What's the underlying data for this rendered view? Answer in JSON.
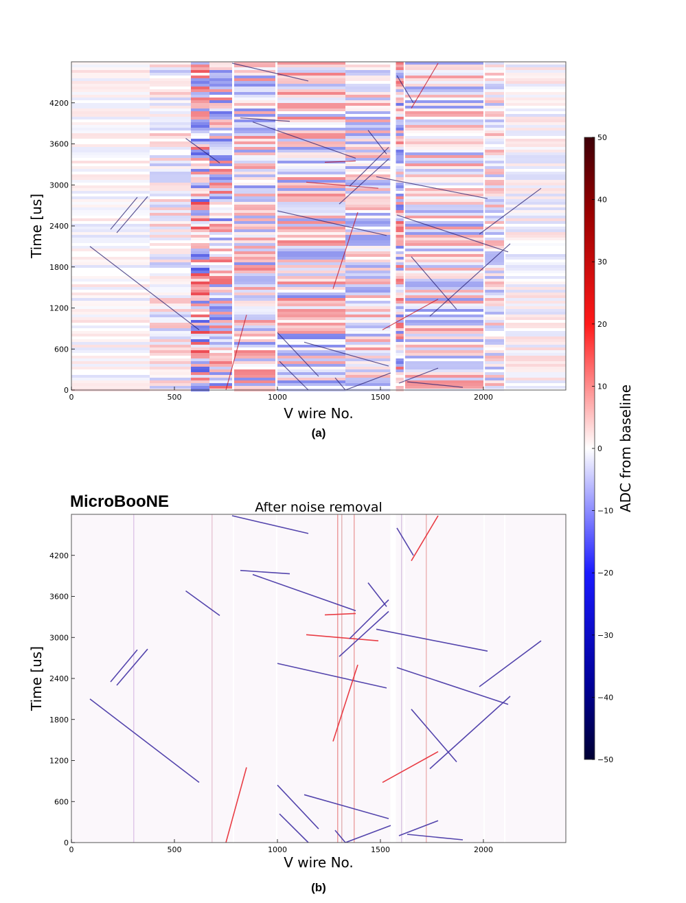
{
  "chart_data": [
    {
      "type": "heatmap",
      "panel_label": "(a)",
      "title": "",
      "xlabel": "V wire No.",
      "ylabel": "Time [us]",
      "xlim": [
        0,
        2400
      ],
      "ylim": [
        0,
        4800
      ],
      "xticks": [
        "0",
        "500",
        "1000",
        "1500",
        "2000"
      ],
      "yticks": [
        "0",
        "600",
        "1200",
        "1800",
        "2400",
        "3000",
        "3600",
        "4200"
      ],
      "dead_wire_bands": [
        [
          783,
          790
        ],
        [
          993,
          1000
        ],
        [
          1548,
          1575
        ],
        [
          1613,
          1620
        ],
        [
          2000,
          2007
        ],
        [
          2100,
          2107
        ]
      ],
      "noise_columns": [
        [
          0,
          380,
          0.5
        ],
        [
          380,
          580,
          1.0
        ],
        [
          580,
          670,
          2.6
        ],
        [
          670,
          780,
          2.2
        ],
        [
          790,
          990,
          1.8
        ],
        [
          1000,
          1330,
          1.9
        ],
        [
          1330,
          1548,
          1.6
        ],
        [
          1575,
          1613,
          2.2
        ],
        [
          1620,
          2000,
          1.7
        ],
        [
          2007,
          2100,
          1.3
        ],
        [
          2107,
          2400,
          0.6
        ]
      ],
      "tracks": [
        {
          "x": [
            90,
            620
          ],
          "y": [
            2100,
            880
          ],
          "sign": -1
        },
        {
          "x": [
            220,
            370
          ],
          "y": [
            2300,
            2830
          ],
          "sign": -1
        },
        {
          "x": [
            190,
            320
          ],
          "y": [
            2350,
            2820
          ],
          "sign": -1
        },
        {
          "x": [
            555,
            720
          ],
          "y": [
            3680,
            3320
          ],
          "sign": -1
        },
        {
          "x": [
            820,
            1060
          ],
          "y": [
            3980,
            3930
          ],
          "sign": -1
        },
        {
          "x": [
            880,
            1380
          ],
          "y": [
            3920,
            3390
          ],
          "sign": -1
        },
        {
          "x": [
            1000,
            1530
          ],
          "y": [
            2620,
            2260
          ],
          "sign": -1
        },
        {
          "x": [
            1230,
            1380
          ],
          "y": [
            3330,
            3350
          ],
          "sign": 1
        },
        {
          "x": [
            1140,
            1490
          ],
          "y": [
            3040,
            2950
          ],
          "sign": 1
        },
        {
          "x": [
            1300,
            1540
          ],
          "y": [
            2720,
            3380
          ],
          "sign": -1
        },
        {
          "x": [
            1350,
            1540
          ],
          "y": [
            2980,
            3550
          ],
          "sign": -1
        },
        {
          "x": [
            1440,
            1530
          ],
          "y": [
            3800,
            3450
          ],
          "sign": -1
        },
        {
          "x": [
            1270,
            1390
          ],
          "y": [
            1480,
            2600
          ],
          "sign": 1
        },
        {
          "x": [
            1480,
            2020
          ],
          "y": [
            3120,
            2800
          ],
          "sign": -1
        },
        {
          "x": [
            1580,
            2120
          ],
          "y": [
            2560,
            2020
          ],
          "sign": -1
        },
        {
          "x": [
            1650,
            1870
          ],
          "y": [
            1950,
            1180
          ],
          "sign": -1
        },
        {
          "x": [
            1740,
            2130
          ],
          "y": [
            1080,
            2140
          ],
          "sign": -1
        },
        {
          "x": [
            1980,
            2280
          ],
          "y": [
            2280,
            2950
          ],
          "sign": -1
        },
        {
          "x": [
            1650,
            1780
          ],
          "y": [
            4120,
            4780
          ],
          "sign": 1
        },
        {
          "x": [
            1580,
            1660
          ],
          "y": [
            4600,
            4200
          ],
          "sign": -1
        },
        {
          "x": [
            1510,
            1780
          ],
          "y": [
            880,
            1330
          ],
          "sign": 1
        },
        {
          "x": [
            750,
            850
          ],
          "y": [
            0,
            1100
          ],
          "sign": 1
        },
        {
          "x": [
            1000,
            1200
          ],
          "y": [
            840,
            200
          ],
          "sign": -1
        },
        {
          "x": [
            1130,
            1540
          ],
          "y": [
            700,
            350
          ],
          "sign": -1
        },
        {
          "x": [
            1010,
            1150
          ],
          "y": [
            420,
            0
          ],
          "sign": -1
        },
        {
          "x": [
            1330,
            1550
          ],
          "y": [
            0,
            250
          ],
          "sign": -1
        },
        {
          "x": [
            1590,
            1780
          ],
          "y": [
            100,
            320
          ],
          "sign": -1
        },
        {
          "x": [
            1280,
            1330
          ],
          "y": [
            180,
            0
          ],
          "sign": -1
        },
        {
          "x": [
            1630,
            1900
          ],
          "y": [
            120,
            40
          ],
          "sign": -1
        },
        {
          "x": [
            780,
            1150
          ],
          "y": [
            4780,
            4520
          ],
          "sign": -1
        }
      ],
      "noise_removed": false
    },
    {
      "type": "heatmap",
      "panel_label": "(b)",
      "title": "After noise removal",
      "brand": "MicroBooNE",
      "xlabel": "V wire No.",
      "ylabel": "Time [us]",
      "xlim": [
        0,
        2400
      ],
      "ylim": [
        0,
        4800
      ],
      "xticks": [
        "0",
        "500",
        "1000",
        "1500",
        "2000"
      ],
      "yticks": [
        "0",
        "600",
        "1200",
        "1800",
        "2400",
        "3000",
        "3600",
        "4200"
      ],
      "dead_wire_bands": [
        [
          783,
          790
        ],
        [
          993,
          1000
        ],
        [
          1548,
          1575
        ],
        [
          1613,
          1620
        ],
        [
          2000,
          2007
        ],
        [
          2100,
          2107
        ]
      ],
      "noise_removed": true
    }
  ],
  "colorbar": {
    "label": "ADC from baseline",
    "min": -50,
    "max": 50,
    "ticks": [
      "50",
      "40",
      "30",
      "20",
      "10",
      "0",
      "−10",
      "−20",
      "−30",
      "−40",
      "−50"
    ],
    "colors": [
      "#67001f",
      "#b2182b",
      "#f4a582",
      "#ffffff",
      "#92c5de",
      "#2166ac",
      "#053061"
    ]
  }
}
